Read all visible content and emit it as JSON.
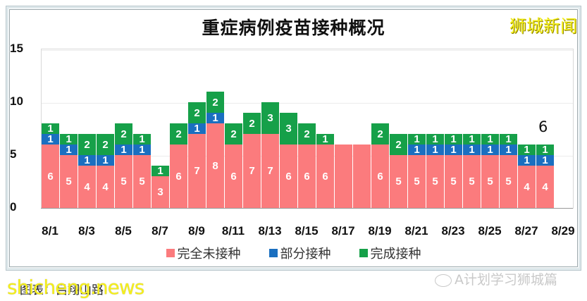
{
  "header": {
    "title": "重症病例疫苗接种概况",
    "brand": "狮城新闻"
  },
  "legend": [
    {
      "label": "完全未接种",
      "color": "#fb7b7d"
    },
    {
      "label": "部分接种",
      "color": "#1a6fc0"
    },
    {
      "label": "完成接种",
      "color": "#16a049"
    }
  ],
  "annotation": "6",
  "caption": "图表：吕翔山路",
  "watermarks": {
    "site": "shicheng.news",
    "wechat": "A计划学习狮城篇"
  },
  "chart_data": {
    "type": "bar",
    "stacked": true,
    "title": "重症病例疫苗接种概况",
    "xlabel": "",
    "ylabel": "",
    "ylim": [
      0,
      15
    ],
    "yticks": [
      0,
      5,
      10,
      15
    ],
    "xticks": [
      "8/1",
      "8/3",
      "8/5",
      "8/7",
      "8/9",
      "8/11",
      "8/13",
      "8/15",
      "8/17",
      "8/19",
      "8/21",
      "8/23",
      "8/25",
      "8/27",
      "8/29"
    ],
    "categories": [
      "8/1",
      "8/2",
      "8/3",
      "8/4",
      "8/5",
      "8/6",
      "8/7",
      "8/8",
      "8/9",
      "8/10",
      "8/11",
      "8/12",
      "8/13",
      "8/14",
      "8/15",
      "8/16",
      "8/17",
      "8/18",
      "8/19",
      "8/20",
      "8/21",
      "8/22",
      "8/23",
      "8/24",
      "8/25",
      "8/26",
      "8/27",
      "8/28"
    ],
    "series": [
      {
        "name": "完全未接种",
        "color": "#fb7b7d",
        "values": [
          6,
          5,
          4,
          4,
          5,
          5,
          3,
          6,
          7,
          8,
          6,
          7,
          7,
          6,
          6,
          6,
          6,
          6,
          6,
          5,
          5,
          5,
          5,
          5,
          5,
          5,
          4,
          4
        ]
      },
      {
        "name": "部分接种",
        "color": "#1a6fc0",
        "values": [
          1,
          1,
          1,
          1,
          1,
          1,
          0,
          0,
          1,
          1,
          0,
          0,
          0,
          0,
          0,
          0,
          0,
          0,
          0,
          0,
          1,
          1,
          1,
          1,
          1,
          1,
          1,
          1
        ]
      },
      {
        "name": "完成接种",
        "color": "#16a049",
        "values": [
          1,
          1,
          2,
          2,
          2,
          1,
          1,
          2,
          2,
          2,
          2,
          2,
          3,
          3,
          2,
          1,
          0,
          0,
          2,
          2,
          1,
          1,
          1,
          1,
          1,
          1,
          1,
          1
        ]
      }
    ],
    "annotations": [
      {
        "text": "6",
        "x": "8/28"
      }
    ],
    "grid": true,
    "legend_position": "bottom"
  }
}
